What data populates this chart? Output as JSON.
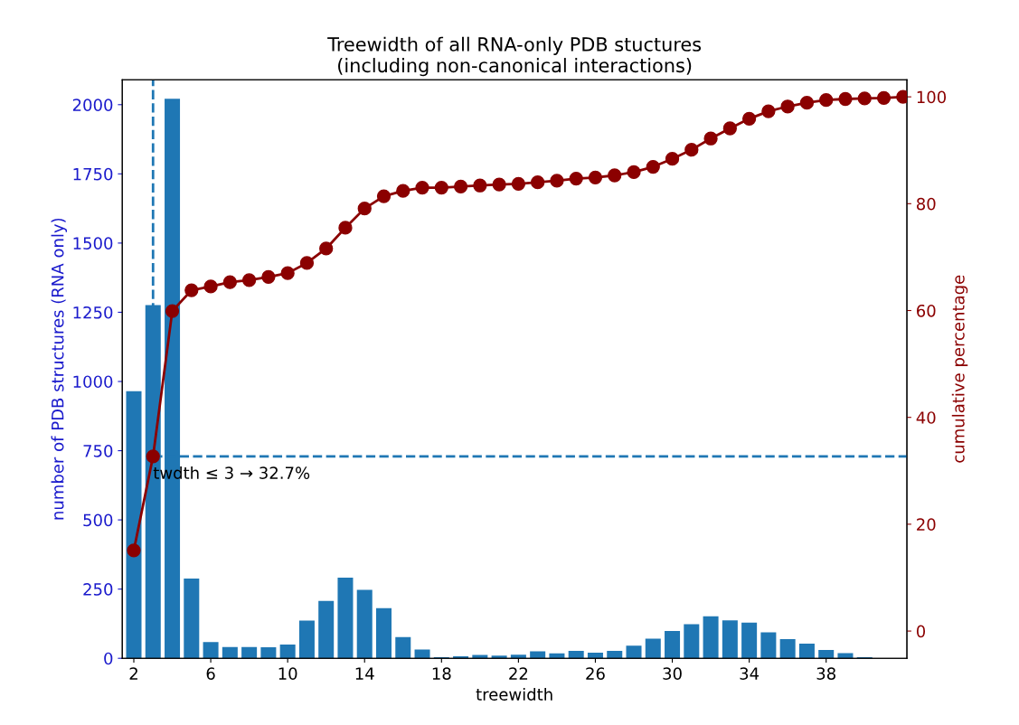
{
  "chart_data": {
    "type": "bar",
    "title": "Treewidth of all RNA-only PDB stuctures\n(including non-canonical interactions)",
    "xlabel": "treewidth",
    "ylabel": "number of PDB structures (RNA only)",
    "y2label": "cumulative percentage",
    "xlim": [
      1.4,
      42.2
    ],
    "xticks": [
      2,
      6,
      10,
      14,
      18,
      22,
      26,
      30,
      34,
      38
    ],
    "ylim": [
      0,
      2090
    ],
    "yticks": [
      0,
      250,
      500,
      750,
      1000,
      1250,
      1500,
      1750,
      2000
    ],
    "y2lim": [
      -5.1,
      103.2
    ],
    "y2ticks": [
      0,
      20,
      40,
      60,
      80,
      100
    ],
    "series": [
      {
        "color": "#1f77b4",
        "x": [
          2,
          3,
          4,
          5,
          6,
          7,
          8,
          9,
          10,
          11,
          12,
          13,
          14,
          15,
          16,
          17,
          18,
          19,
          20,
          21,
          22,
          23,
          24,
          25,
          26,
          27,
          28,
          29,
          30,
          31,
          32,
          33,
          34,
          35,
          36,
          37,
          38,
          39,
          40
        ],
        "values": [
          965,
          1276,
          2021,
          288,
          59,
          41,
          41,
          40,
          50,
          136,
          207,
          291,
          247,
          181,
          77,
          32,
          4,
          7,
          12,
          10,
          13,
          25,
          18,
          27,
          20,
          27,
          46,
          71,
          99,
          123,
          152,
          137,
          129,
          94,
          69,
          53,
          30,
          19,
          4
        ]
      },
      {
        "type": "line",
        "axis": "y2",
        "color": "#8b0000",
        "marker": "circle",
        "x": [
          2,
          3,
          4,
          5,
          6,
          7,
          8,
          9,
          10,
          11,
          12,
          13,
          14,
          15,
          16,
          17,
          18,
          19,
          20,
          21,
          22,
          23,
          24,
          25,
          26,
          27,
          28,
          29,
          30,
          31,
          32,
          33,
          34,
          35,
          36,
          37,
          38,
          39,
          40,
          41,
          42
        ],
        "values": [
          15.1,
          32.7,
          59.9,
          63.8,
          64.5,
          65.3,
          65.7,
          66.3,
          67.0,
          68.9,
          71.6,
          75.5,
          79.1,
          81.4,
          82.4,
          83.0,
          83.0,
          83.2,
          83.4,
          83.6,
          83.7,
          84.0,
          84.3,
          84.7,
          84.9,
          85.3,
          85.9,
          86.9,
          88.4,
          90.1,
          92.2,
          94.1,
          95.9,
          97.3,
          98.2,
          98.9,
          99.4,
          99.6,
          99.7,
          99.8,
          100
        ]
      }
    ],
    "ref_lines": [
      {
        "axis": "x",
        "value": 3,
        "color": "#1f77b4",
        "line_style": "dashed"
      },
      {
        "axis": "y2",
        "value": 32.7,
        "color": "#1f77b4",
        "line_style": "dashed"
      }
    ],
    "annotations": [
      "twdth ≤ 3 → 32.7%"
    ],
    "grid": false,
    "legend": false
  }
}
